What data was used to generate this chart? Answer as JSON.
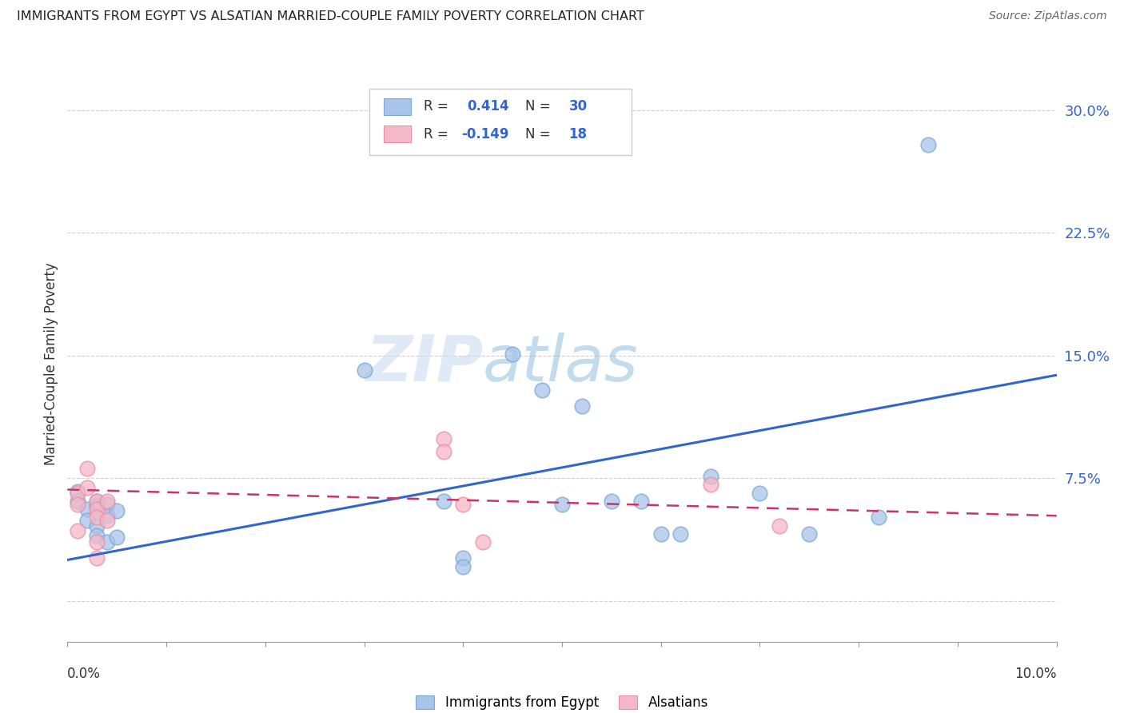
{
  "title": "IMMIGRANTS FROM EGYPT VS ALSATIAN MARRIED-COUPLE FAMILY POVERTY CORRELATION CHART",
  "source": "Source: ZipAtlas.com",
  "ylabel": "Married-Couple Family Poverty",
  "ytick_values": [
    0.0,
    0.075,
    0.15,
    0.225,
    0.3
  ],
  "ytick_labels": [
    "",
    "7.5%",
    "15.0%",
    "22.5%",
    "30.0%"
  ],
  "xlim": [
    0.0,
    0.1
  ],
  "ylim": [
    -0.025,
    0.315
  ],
  "legend_label1": "Immigrants from Egypt",
  "legend_label2": "Alsatians",
  "r1": "0.414",
  "n1": "30",
  "r2": "-0.149",
  "n2": "18",
  "blue_color": "#a8c4e8",
  "pink_color": "#f4b8c8",
  "blue_edge": "#7aaad4",
  "pink_edge": "#e890a8",
  "line_blue": "#3366cc",
  "line_pink": "#cc3366",
  "blue_scatter": [
    [
      0.001,
      0.067
    ],
    [
      0.001,
      0.061
    ],
    [
      0.002,
      0.056
    ],
    [
      0.002,
      0.049
    ],
    [
      0.003,
      0.061
    ],
    [
      0.003,
      0.058
    ],
    [
      0.003,
      0.046
    ],
    [
      0.003,
      0.04
    ],
    [
      0.004,
      0.059
    ],
    [
      0.004,
      0.052
    ],
    [
      0.004,
      0.036
    ],
    [
      0.005,
      0.055
    ],
    [
      0.005,
      0.039
    ],
    [
      0.03,
      0.141
    ],
    [
      0.038,
      0.061
    ],
    [
      0.04,
      0.026
    ],
    [
      0.04,
      0.021
    ],
    [
      0.045,
      0.151
    ],
    [
      0.048,
      0.129
    ],
    [
      0.05,
      0.059
    ],
    [
      0.052,
      0.119
    ],
    [
      0.055,
      0.061
    ],
    [
      0.058,
      0.061
    ],
    [
      0.06,
      0.041
    ],
    [
      0.062,
      0.041
    ],
    [
      0.065,
      0.076
    ],
    [
      0.07,
      0.066
    ],
    [
      0.075,
      0.041
    ],
    [
      0.082,
      0.051
    ],
    [
      0.087,
      0.279
    ]
  ],
  "pink_scatter": [
    [
      0.001,
      0.066
    ],
    [
      0.001,
      0.059
    ],
    [
      0.001,
      0.043
    ],
    [
      0.002,
      0.081
    ],
    [
      0.002,
      0.069
    ],
    [
      0.003,
      0.061
    ],
    [
      0.003,
      0.056
    ],
    [
      0.003,
      0.051
    ],
    [
      0.003,
      0.036
    ],
    [
      0.003,
      0.026
    ],
    [
      0.004,
      0.061
    ],
    [
      0.004,
      0.049
    ],
    [
      0.038,
      0.099
    ],
    [
      0.038,
      0.091
    ],
    [
      0.04,
      0.059
    ],
    [
      0.042,
      0.036
    ],
    [
      0.065,
      0.071
    ],
    [
      0.072,
      0.046
    ]
  ],
  "blue_line_x": [
    0.0,
    0.1
  ],
  "blue_line_y": [
    0.025,
    0.138
  ],
  "pink_line_x": [
    0.0,
    0.1
  ],
  "pink_line_y": [
    0.068,
    0.052
  ],
  "watermark_zip": "ZIP",
  "watermark_atlas": "atlas",
  "background_color": "#ffffff",
  "grid_color": "#d0d0d0"
}
